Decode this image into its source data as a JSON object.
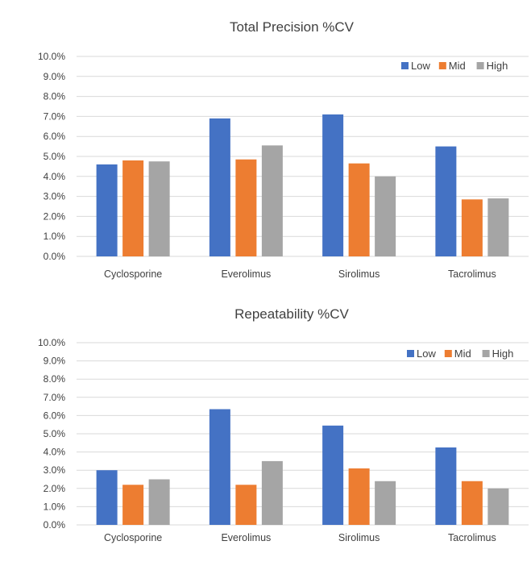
{
  "chart_data": [
    {
      "type": "bar",
      "title": "Total Precision %CV",
      "categories": [
        "Cyclosporine",
        "Everolimus",
        "Sirolimus",
        "Tacrolimus"
      ],
      "series": [
        {
          "name": "Low",
          "color": "#4472C4",
          "values": [
            4.6,
            6.9,
            7.1,
            5.5
          ]
        },
        {
          "name": "Mid",
          "color": "#ED7D31",
          "values": [
            4.8,
            4.85,
            4.65,
            2.85
          ]
        },
        {
          "name": "High",
          "color": "#A5A5A5",
          "values": [
            4.75,
            5.55,
            4.0,
            2.9
          ]
        }
      ],
      "yticks": [
        "0.0%",
        "1.0%",
        "2.0%",
        "3.0%",
        "4.0%",
        "5.0%",
        "6.0%",
        "7.0%",
        "8.0%",
        "9.0%",
        "10.0%"
      ],
      "ylim": [
        0,
        10
      ],
      "grid": true,
      "legend": "top-right"
    },
    {
      "type": "bar",
      "title": "Repeatability %CV",
      "categories": [
        "Cyclosporine",
        "Everolimus",
        "Sirolimus",
        "Tacrolimus"
      ],
      "series": [
        {
          "name": "Low",
          "color": "#4472C4",
          "values": [
            3.0,
            6.35,
            5.45,
            4.25
          ]
        },
        {
          "name": "Mid",
          "color": "#ED7D31",
          "values": [
            2.2,
            2.2,
            3.1,
            2.4
          ]
        },
        {
          "name": "High",
          "color": "#A5A5A5",
          "values": [
            2.5,
            3.5,
            2.4,
            2.0
          ]
        }
      ],
      "yticks": [
        "0.0%",
        "1.0%",
        "2.0%",
        "3.0%",
        "4.0%",
        "5.0%",
        "6.0%",
        "7.0%",
        "8.0%",
        "9.0%",
        "10.0%"
      ],
      "ylim": [
        0,
        10
      ],
      "grid": true,
      "legend": "top-right"
    }
  ]
}
